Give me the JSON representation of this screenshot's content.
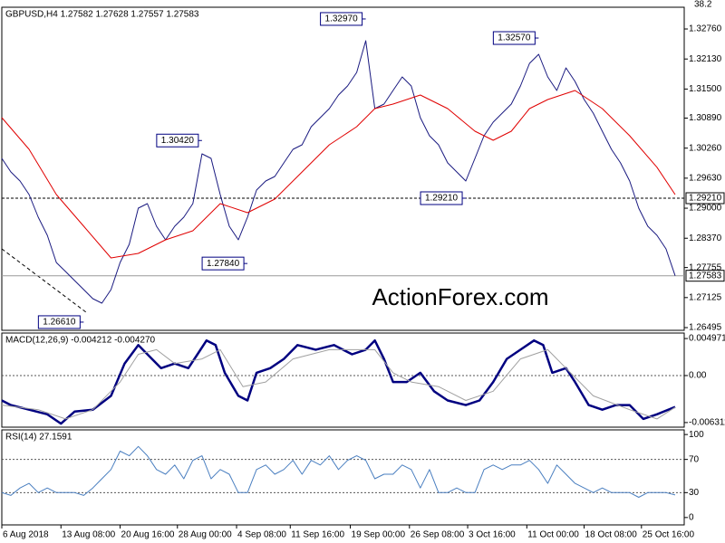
{
  "chart_data": [
    {
      "type": "line",
      "title": "GBPUSD,H4 1.27582 1.27628 1.27557 1.27583",
      "top_label": "38.2",
      "watermark": "ActionForex.com",
      "xlim": [
        0,
        75
      ],
      "ylim": [
        1.26438,
        1.33216
      ],
      "yticks": [
        {
          "value": 1.3276,
          "label": "1.32760"
        },
        {
          "value": 1.3213,
          "label": "1.32130"
        },
        {
          "value": 1.315,
          "label": "1.31500"
        },
        {
          "value": 1.3089,
          "label": "1.30890"
        },
        {
          "value": 1.3026,
          "label": "1.30260"
        },
        {
          "value": 1.2963,
          "label": "1.29630"
        },
        {
          "value": 1.29,
          "label": "1.29000"
        },
        {
          "value": 1.2837,
          "label": "1.28370"
        },
        {
          "value": 1.27755,
          "label": "1.27755"
        },
        {
          "value": 1.27125,
          "label": "1.27125"
        },
        {
          "value": 1.26495,
          "label": "1.26495"
        }
      ],
      "series": [
        {
          "name": "GBPUSD",
          "color": "#1a1a80",
          "width": 1,
          "values": [
            1.30045,
            1.2976,
            1.2957,
            1.29285,
            1.28811,
            1.28431,
            1.27861,
            1.27672,
            1.27482,
            1.27292,
            1.27102,
            1.27007,
            1.27292,
            1.27861,
            1.28241,
            1.29001,
            1.29096,
            1.28621,
            1.28336,
            1.28621,
            1.28811,
            1.29096,
            1.3014,
            1.30045,
            1.29285,
            1.28621,
            1.28336,
            1.28811,
            1.2938,
            1.2957,
            1.29665,
            1.2995,
            1.30235,
            1.3033,
            1.30709,
            1.30899,
            1.31089,
            1.31374,
            1.31564,
            1.31849,
            1.32513,
            1.31089,
            1.31184,
            1.31469,
            1.31754,
            1.31564,
            1.30899,
            1.3052,
            1.3033,
            1.2995,
            1.2976,
            1.2957,
            1.30045,
            1.3052,
            1.30804,
            1.30994,
            1.31184,
            1.31564,
            1.32039,
            1.32228,
            1.31754,
            1.31469,
            1.31944,
            1.31659,
            1.31279,
            1.30994,
            1.30615,
            1.30235,
            1.2995,
            1.2957,
            1.29001,
            1.28621,
            1.28431,
            1.28146,
            1.27583
          ]
        },
        {
          "name": "MA",
          "color": "#e00000",
          "width": 1,
          "x": [
            0,
            3,
            6,
            9,
            12,
            15,
            18,
            21,
            24,
            27,
            30,
            33,
            36,
            39,
            41,
            43,
            46,
            49,
            52,
            54,
            56,
            58,
            60,
            63,
            66,
            69,
            72,
            74
          ],
          "values": [
            1.30899,
            1.30235,
            1.29285,
            1.28621,
            1.27956,
            1.28051,
            1.28336,
            1.28526,
            1.29096,
            1.28906,
            1.29191,
            1.2976,
            1.3033,
            1.30709,
            1.31089,
            1.31184,
            1.31374,
            1.31089,
            1.30615,
            1.30425,
            1.30615,
            1.31089,
            1.31279,
            1.31469,
            1.31089,
            1.3052,
            1.2986,
            1.29285
          ]
        }
      ],
      "annotations": [
        {
          "text": "1.32970",
          "value": 1.3297,
          "x": 40
        },
        {
          "text": "1.32570",
          "value": 1.3257,
          "x": 59
        },
        {
          "text": "1.30420",
          "value": 1.3042,
          "x": 22
        },
        {
          "text": "1.29210",
          "value": 1.2921,
          "x": 51
        },
        {
          "text": "1.27840",
          "value": 1.2784,
          "x": 27
        },
        {
          "text": "1.26610",
          "value": 1.2661,
          "x": 9
        }
      ],
      "hlines": [
        {
          "value": 1.2921,
          "label": "1.29210",
          "style": "dotted"
        },
        {
          "value": 1.27583,
          "label": "1.27583",
          "style": "solid"
        }
      ]
    },
    {
      "type": "line",
      "title": "MACD(12,26,9) -0.004212 -0.004270",
      "xlim": [
        0,
        75
      ],
      "ylim": [
        -0.00693,
        0.00571
      ],
      "yticks": [
        0.004971,
        {
          "value": 0,
          "label": "0.00"
        },
        -0.006311
      ],
      "levels": [
        0
      ],
      "series": [
        {
          "name": "MACD",
          "color": "#000080",
          "width": 2.5,
          "x": [
            0,
            1,
            3,
            5,
            6.5,
            8,
            10,
            12,
            13.5,
            15,
            16.5,
            17.5,
            19,
            20.5,
            21.5,
            22.5,
            23.5,
            24.5,
            26,
            27,
            28,
            29.5,
            31,
            32.5,
            34.5,
            36.5,
            38.5,
            40,
            41,
            42,
            43,
            44.5,
            46,
            47.5,
            49,
            51,
            52.5,
            54,
            55.5,
            57,
            58.5,
            59.5,
            60.5,
            62,
            63,
            64.5,
            66,
            67.5,
            69,
            70.5,
            72,
            74
          ],
          "values": [
            -0.00335,
            -0.00397,
            -0.00459,
            -0.00521,
            -0.00645,
            -0.00484,
            -0.00459,
            -0.00273,
            0.00161,
            0.00409,
            0.00223,
            0.00099,
            0.00161,
            0.00099,
            0.00285,
            0.00471,
            0.00409,
            0.00037,
            -0.00273,
            -0.00335,
            0.00037,
            0.00099,
            0.00223,
            0.00409,
            0.00347,
            0.00409,
            0.00285,
            0.00347,
            0.00471,
            0.00223,
            -0.00087,
            -0.00087,
            0.00037,
            -0.00211,
            -0.00335,
            -0.00397,
            -0.00335,
            -0.00087,
            0.00223,
            0.00347,
            0.00471,
            0.00409,
            0.00037,
            0.00099,
            -0.00087,
            -0.00397,
            -0.00459,
            -0.00397,
            -0.00397,
            -0.00583,
            -0.00521,
            -0.004212
          ]
        },
        {
          "name": "Signal",
          "color": "#a0a0a0",
          "width": 1,
          "x": [
            0,
            4,
            7,
            10,
            13,
            15,
            17,
            19,
            22,
            24,
            26.5,
            29,
            32,
            36,
            41,
            43,
            45,
            48,
            51,
            54,
            57,
            60,
            62,
            65,
            69,
            72,
            74
          ],
          "values": [
            -0.00397,
            -0.00459,
            -0.00583,
            -0.00459,
            -0.00087,
            0.00285,
            0.00347,
            0.00161,
            0.00223,
            0.00347,
            -0.00149,
            -0.00087,
            0.00223,
            0.00347,
            0.00347,
            0.00037,
            -0.00087,
            -0.00149,
            -0.00335,
            -0.00211,
            0.00223,
            0.00347,
            0.00099,
            -0.00273,
            -0.00459,
            -0.00583,
            -0.00427
          ]
        }
      ]
    },
    {
      "type": "line",
      "title": "RSI(14) 27.1591",
      "xlim": [
        0,
        75
      ],
      "ylim": [
        -8.9,
        105.6
      ],
      "yticks": [
        100,
        70,
        30,
        0
      ],
      "levels": [
        70,
        30
      ],
      "xticks": [
        {
          "value": 0,
          "label": "6 Aug 2018"
        },
        {
          "value": 6.5,
          "label": "13 Aug 08:00"
        },
        {
          "value": 13,
          "label": "20 Aug 16:00"
        },
        {
          "value": 19.3,
          "label": "28 Aug 00:00"
        },
        {
          "value": 25.8,
          "label": "4 Sep 08:00"
        },
        {
          "value": 31.7,
          "label": "11 Sep 16:00"
        },
        {
          "value": 38.3,
          "label": "19 Sep 00:00"
        },
        {
          "value": 44.8,
          "label": "26 Sep 08:00"
        },
        {
          "value": 51.2,
          "label": "3 Oct 16:00"
        },
        {
          "value": 57.7,
          "label": "11 Oct 00:00"
        },
        {
          "value": 64,
          "label": "18 Oct 08:00"
        },
        {
          "value": 70.3,
          "label": "25 Oct 16:00"
        }
      ],
      "series": [
        {
          "name": "RSI",
          "color": "#4a7fc0",
          "width": 1,
          "values": [
            30,
            26.7,
            35.6,
            41.1,
            30,
            35.6,
            30,
            30,
            30,
            26.7,
            35.6,
            46.7,
            57.8,
            80,
            74.4,
            85.6,
            74.4,
            57.8,
            52.2,
            63.3,
            46.7,
            68.9,
            74.4,
            46.7,
            57.8,
            52.2,
            30,
            30,
            57.8,
            63.3,
            52.2,
            57.8,
            68.9,
            52.2,
            68.9,
            63.3,
            74.4,
            57.8,
            68.9,
            74.4,
            68.9,
            46.7,
            52.2,
            52.2,
            63.3,
            57.8,
            35.6,
            57.8,
            30,
            30,
            35.6,
            30,
            30,
            57.8,
            63.3,
            57.8,
            63.3,
            63.3,
            68.9,
            57.8,
            41.1,
            63.3,
            52.2,
            41.1,
            35.6,
            30,
            35.6,
            30,
            30,
            30,
            24.4,
            30,
            30,
            30,
            27.2
          ]
        }
      ]
    }
  ]
}
